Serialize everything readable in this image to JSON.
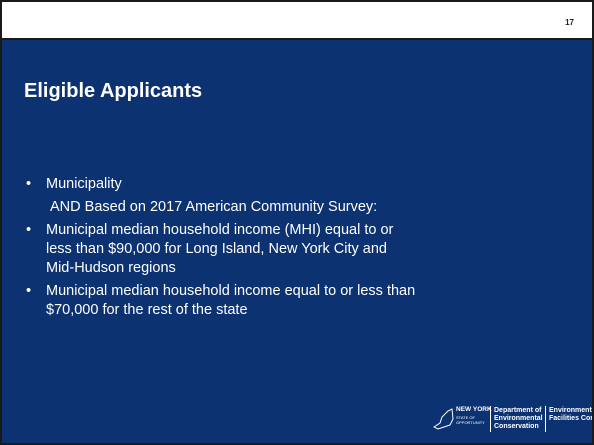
{
  "slide": {
    "number": "17",
    "title": "Eligible Applicants",
    "body": [
      {
        "lines": [
          "Municipality"
        ]
      },
      {
        "lines": [
          "AND Based on 2017 American Community Survey:"
        ]
      },
      {
        "lines": [
          "Municipal median household income (MHI) equal to or",
          "less than $90,000 for Long Island, New York City and",
          "Mid-Hudson regions"
        ]
      },
      {
        "lines": [
          "Municipal median household income equal to or less than",
          "$70,000 for the rest of the state"
        ]
      }
    ],
    "logo": {
      "state": "NEW YORK",
      "state_tag": [
        "STATE OF",
        "OPPORTUNITY"
      ],
      "dec": [
        "Department of",
        "Environmental",
        "Conservation"
      ],
      "efc": [
        "Environmental",
        "Facilities Corporation"
      ]
    }
  }
}
